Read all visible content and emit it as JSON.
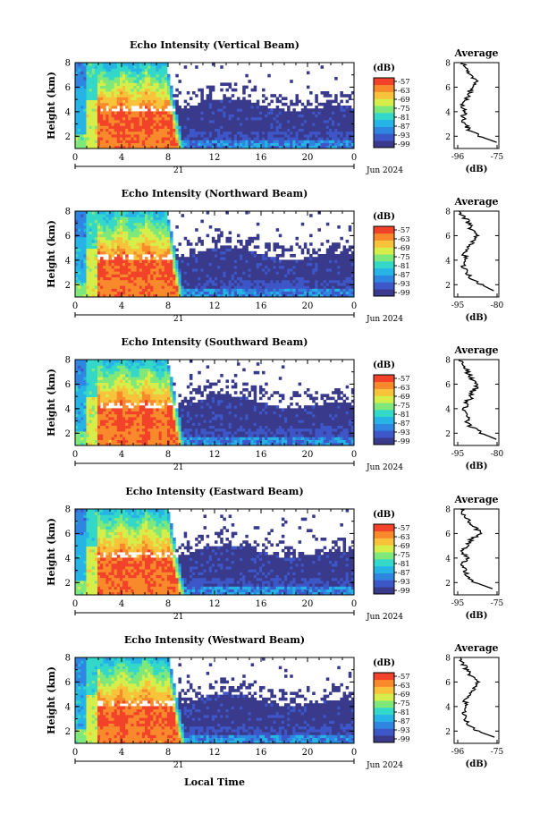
{
  "figure": {
    "xaxis_label": "Local Time",
    "date_label": "Jun 2024",
    "day_label": "21"
  },
  "colors": {
    "scale": [
      "#3a3a8c",
      "#3d56c8",
      "#2f86e0",
      "#26b4e6",
      "#34d8c8",
      "#7ee87a",
      "#d6ee4a",
      "#f8c23a",
      "#f88a2c",
      "#f2422a"
    ]
  },
  "chart_data": [
    {
      "type": "heatmap",
      "title": "Echo Intensity (Vertical Beam)",
      "ylabel": "Height (km)",
      "colorbar_label": "(dB)",
      "colorbar_ticks": [
        "-57",
        "-63",
        "-69",
        "-75",
        "-81",
        "-87",
        "-93",
        "-99"
      ],
      "x_ticks": [
        "0",
        "4",
        "8",
        "12",
        "16",
        "20",
        "0"
      ],
      "y_ticks": [
        "2",
        "4",
        "6",
        "8"
      ],
      "xlim": [
        0,
        24
      ],
      "ylim": [
        1,
        8
      ],
      "profile": {
        "title": "Average",
        "xlabel": "(dB)",
        "x_ticks": [
          "-96",
          "-75"
        ],
        "xlim": [
          -96,
          -75
        ],
        "height": [
          1.5,
          2.0,
          2.5,
          3.0,
          3.5,
          4.0,
          4.5,
          5.0,
          5.5,
          6.0,
          6.5,
          7.0,
          7.5,
          8.0
        ],
        "value": [
          -76,
          -84,
          -89,
          -91,
          -92,
          -91,
          -92,
          -90,
          -89,
          -88,
          -86,
          -88,
          -90,
          -92
        ]
      }
    },
    {
      "type": "heatmap",
      "title": "Echo Intensity (Northward Beam)",
      "ylabel": "Height (km)",
      "colorbar_label": "(dB)",
      "colorbar_ticks": [
        "-57",
        "-63",
        "-69",
        "-75",
        "-81",
        "-87",
        "-93",
        "-99"
      ],
      "x_ticks": [
        "0",
        "4",
        "8",
        "12",
        "16",
        "20",
        "0"
      ],
      "y_ticks": [
        "2",
        "4",
        "6",
        "8"
      ],
      "xlim": [
        0,
        24
      ],
      "ylim": [
        1,
        8
      ],
      "profile": {
        "title": "Average",
        "xlabel": "(dB)",
        "x_ticks": [
          "-95",
          "-80"
        ],
        "xlim": [
          -95,
          -77
        ],
        "height": [
          1.5,
          2.0,
          2.5,
          3.0,
          3.5,
          4.0,
          4.5,
          5.0,
          5.5,
          6.0,
          6.5,
          7.0,
          7.5,
          8.0
        ],
        "value": [
          -79,
          -84,
          -88,
          -90,
          -91,
          -90,
          -91,
          -89,
          -88,
          -86,
          -88,
          -89,
          -91,
          -93
        ]
      }
    },
    {
      "type": "heatmap",
      "title": "Echo Intensity (Southward Beam)",
      "ylabel": "Height (km)",
      "colorbar_label": "(dB)",
      "colorbar_ticks": [
        "-57",
        "-63",
        "-69",
        "-75",
        "-81",
        "-87",
        "-93",
        "-99"
      ],
      "x_ticks": [
        "0",
        "4",
        "8",
        "12",
        "16",
        "20",
        "0"
      ],
      "y_ticks": [
        "2",
        "4",
        "6",
        "8"
      ],
      "xlim": [
        0,
        24
      ],
      "ylim": [
        1,
        8
      ],
      "profile": {
        "title": "Average",
        "xlabel": "(dB)",
        "x_ticks": [
          "-95",
          "-80"
        ],
        "xlim": [
          -95,
          -77
        ],
        "height": [
          1.5,
          2.0,
          2.5,
          3.0,
          3.5,
          4.0,
          4.5,
          5.0,
          5.5,
          6.0,
          6.5,
          7.0,
          7.5,
          8.0
        ],
        "value": [
          -78,
          -84,
          -88,
          -90,
          -90,
          -91,
          -90,
          -88,
          -87,
          -85,
          -88,
          -90,
          -91,
          -93
        ]
      }
    },
    {
      "type": "heatmap",
      "title": "Echo Intensity (Eastward Beam)",
      "ylabel": "Height (km)",
      "colorbar_label": "(dB)",
      "colorbar_ticks": [
        "-57",
        "-63",
        "-69",
        "-75",
        "-81",
        "-87",
        "-93",
        "-99"
      ],
      "x_ticks": [
        "0",
        "4",
        "8",
        "12",
        "16",
        "20",
        "0"
      ],
      "y_ticks": [
        "2",
        "4",
        "6",
        "8"
      ],
      "xlim": [
        0,
        24
      ],
      "ylim": [
        1,
        8
      ],
      "profile": {
        "title": "Average",
        "xlabel": "(dB)",
        "x_ticks": [
          "-95",
          "-75"
        ],
        "xlim": [
          -96,
          -75
        ],
        "height": [
          1.5,
          2.0,
          2.5,
          3.0,
          3.5,
          4.0,
          4.5,
          5.0,
          5.5,
          6.0,
          6.5,
          7.0,
          7.5,
          8.0
        ],
        "value": [
          -78,
          -86,
          -90,
          -91,
          -92,
          -90,
          -92,
          -90,
          -88,
          -84,
          -86,
          -89,
          -91,
          -93
        ]
      }
    },
    {
      "type": "heatmap",
      "title": "Echo Intensity (Westward Beam)",
      "ylabel": "Height (km)",
      "colorbar_label": "(dB)",
      "colorbar_ticks": [
        "-57",
        "-63",
        "-69",
        "-75",
        "-81",
        "-87",
        "-93",
        "-99"
      ],
      "x_ticks": [
        "0",
        "4",
        "8",
        "12",
        "16",
        "20",
        "0"
      ],
      "y_ticks": [
        "2",
        "4",
        "6",
        "8"
      ],
      "xlim": [
        0,
        24
      ],
      "ylim": [
        1,
        8
      ],
      "profile": {
        "title": "Average",
        "xlabel": "(dB)",
        "x_ticks": [
          "-96",
          "-75"
        ],
        "xlim": [
          -96,
          -75
        ],
        "height": [
          1.5,
          2.0,
          2.5,
          3.0,
          3.5,
          4.0,
          4.5,
          5.0,
          5.5,
          6.0,
          6.5,
          7.0,
          7.5,
          8.0
        ],
        "value": [
          -77,
          -85,
          -89,
          -91,
          -91,
          -90,
          -91,
          -88,
          -87,
          -85,
          -88,
          -90,
          -92,
          -93
        ]
      }
    }
  ]
}
